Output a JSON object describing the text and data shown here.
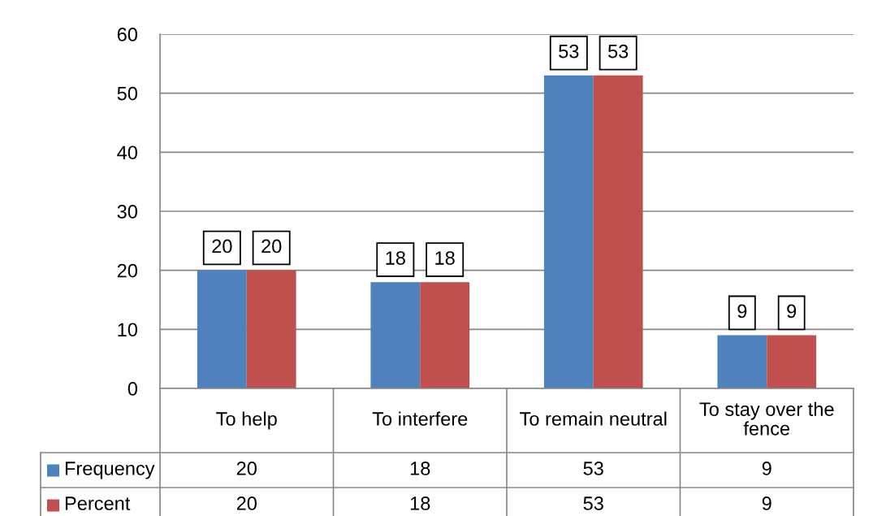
{
  "chart_data": {
    "type": "bar",
    "categories": [
      "To help",
      "To interfere",
      "To remain neutral",
      "To stay over the fence"
    ],
    "series": [
      {
        "name": "Frequency",
        "color": "#4f81bd",
        "values": [
          20,
          18,
          53,
          9
        ]
      },
      {
        "name": "Percent",
        "color": "#c0504d",
        "values": [
          20,
          18,
          53,
          9
        ]
      }
    ],
    "ylim": [
      0,
      60
    ],
    "yticks": [
      0,
      10,
      20,
      30,
      40,
      50,
      60
    ],
    "grid": "y",
    "legend": "bottom left",
    "data_labels": true,
    "annotations": [
      {
        "text": "20",
        "x": "To help",
        "y": 20
      },
      {
        "text": "20",
        "x": "To help",
        "y": 20
      },
      {
        "text": "18",
        "x": "To interfere",
        "y": 18
      },
      {
        "text": "18",
        "x": "To interfere",
        "y": 18
      },
      {
        "text": "53",
        "x": "To remain neutral",
        "y": 53
      },
      {
        "text": "53",
        "x": "To remain neutral",
        "y": 53
      },
      {
        "text": "9",
        "x": "To stay over the fence",
        "y": 9
      },
      {
        "text": "9",
        "x": "To stay over the fence",
        "y": 9
      }
    ]
  }
}
